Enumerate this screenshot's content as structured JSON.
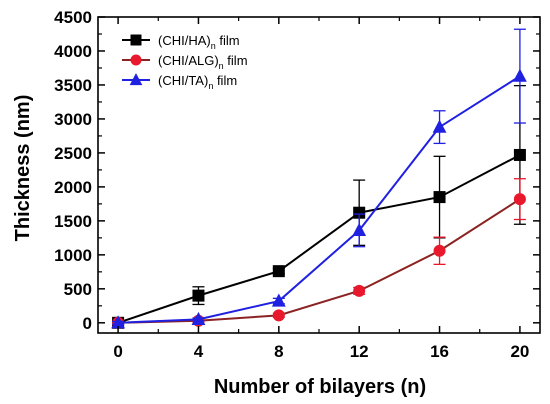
{
  "chart_data": {
    "type": "line",
    "xlabel": "Number of bilayers (n)",
    "ylabel": "Thickness (nm)",
    "xlim": [
      -1,
      21
    ],
    "ylim": [
      -150,
      4500
    ],
    "x_ticks": [
      0,
      4,
      8,
      12,
      16,
      20
    ],
    "y_ticks": [
      0,
      500,
      1000,
      1500,
      2000,
      2500,
      3000,
      3500,
      4000,
      4500
    ],
    "grid": false,
    "legend_position": "top-left",
    "x": [
      0,
      4,
      8,
      12,
      16,
      20
    ],
    "series": [
      {
        "name": "(CHI/HA)",
        "subscript": "n",
        "suffix": " film",
        "color": "#000000",
        "marker": "square",
        "values": [
          0,
          400,
          760,
          1620,
          1850,
          2470
        ],
        "errors": [
          30,
          130,
          40,
          480,
          600,
          1020
        ]
      },
      {
        "name": "(CHI/ALG)",
        "subscript": "n",
        "suffix": " film",
        "color": "#e8192c",
        "line_color": "#8b2323",
        "marker": "circle",
        "values": [
          0,
          30,
          110,
          470,
          1060,
          1820
        ],
        "errors": [
          20,
          20,
          30,
          50,
          200,
          300
        ]
      },
      {
        "name": "(CHI/TA)",
        "subscript": "n",
        "suffix": " film",
        "color": "#2020e0",
        "marker": "triangle",
        "values": [
          0,
          50,
          320,
          1360,
          2880,
          3630
        ],
        "errors": [
          20,
          20,
          40,
          240,
          240,
          690
        ]
      }
    ]
  }
}
